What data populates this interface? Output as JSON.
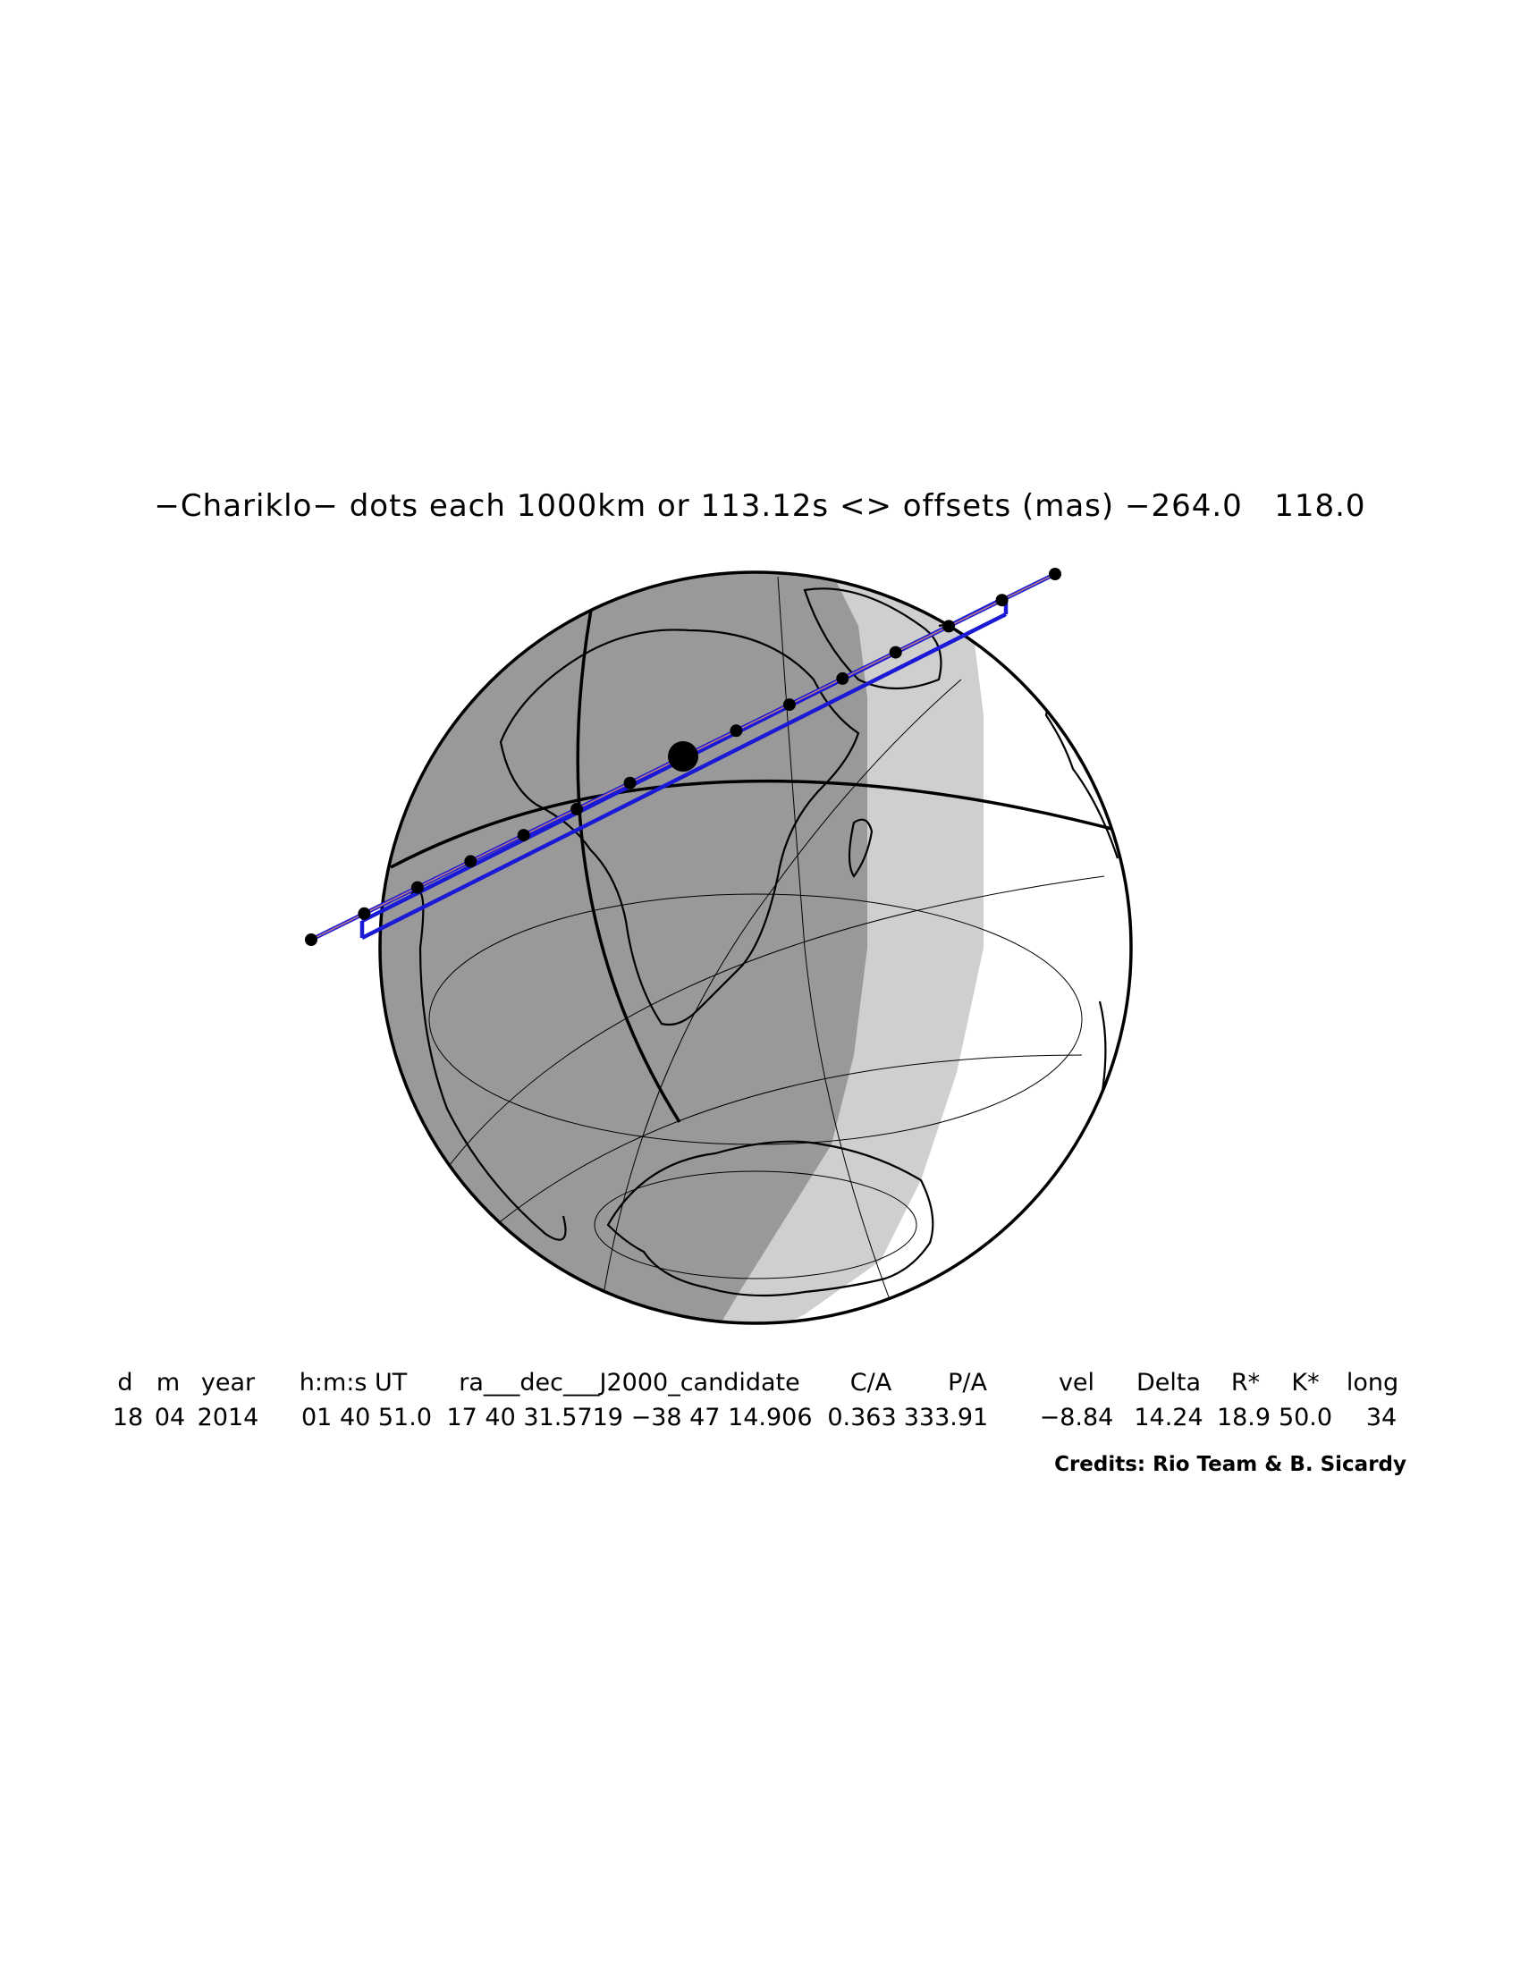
{
  "title": "−Chariklo− dots each 1000km or 113.12s <> offsets (mas) −264.0   118.0",
  "table": {
    "headers": [
      "d",
      "m",
      "year",
      "h:m:s UT",
      "ra___dec___J2000_candidate",
      "C/A",
      "P/A",
      "vel",
      "Delta",
      "R*",
      "K*",
      "long"
    ],
    "values": [
      "18",
      "04",
      "2014",
      "01  40  51.0",
      "17  40  31.5719  −38  47  14.906",
      "0.363",
      "333.91",
      "−8.84",
      "14.24",
      "18.9",
      "50.0",
      "34"
    ]
  },
  "credits": "Credits: Rio Team & B. Sicardy",
  "colors": {
    "night": "#999999",
    "twilight": "#cfcfcf",
    "day": "#ffffff",
    "track": "#1a1ad6",
    "centerline": "#c08080",
    "outline": "#000000"
  },
  "track": {
    "dot_count": 15
  }
}
